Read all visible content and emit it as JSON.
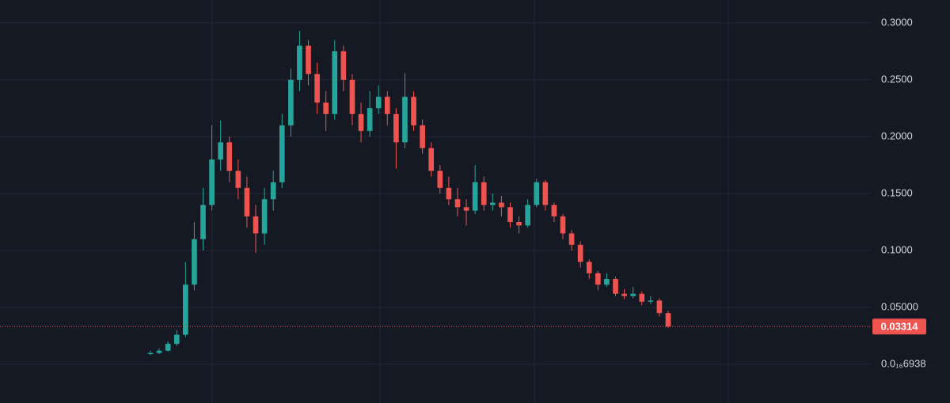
{
  "chart_data": {
    "type": "candlestick",
    "up_color": "#26a69a",
    "down_color": "#ef5350",
    "ylim": [
      -0.034,
      0.3201
    ],
    "yticks": [
      {
        "value": 0.3,
        "label": "0.3000"
      },
      {
        "value": 0.25,
        "label": "0.2500"
      },
      {
        "value": 0.2,
        "label": "0.2000"
      },
      {
        "value": 0.15,
        "label": "0.1500"
      },
      {
        "value": 0.1,
        "label": "0.1000"
      },
      {
        "value": 0.05,
        "label": "0.05000"
      },
      {
        "value": 6.938e-17,
        "label": "0.0₁₆6938"
      }
    ],
    "grid": true,
    "last_price": 0.03314,
    "open": [
      0.009,
      0.01,
      0.012,
      0.018,
      0.026,
      0.07,
      0.11,
      0.14,
      0.18,
      0.195,
      0.17,
      0.155,
      0.13,
      0.115,
      0.145,
      0.16,
      0.21,
      0.25,
      0.28,
      0.255,
      0.23,
      0.22,
      0.275,
      0.25,
      0.22,
      0.205,
      0.225,
      0.235,
      0.22,
      0.195,
      0.235,
      0.21,
      0.19,
      0.17,
      0.155,
      0.145,
      0.138,
      0.135,
      0.16,
      0.14,
      0.142,
      0.138,
      0.125,
      0.122,
      0.14,
      0.16,
      0.14,
      0.13,
      0.115,
      0.105,
      0.09,
      0.08,
      0.07,
      0.075,
      0.062,
      0.06,
      0.062,
      0.055,
      0.056,
      0.045
    ],
    "high": [
      0.012,
      0.014,
      0.02,
      0.03,
      0.09,
      0.125,
      0.155,
      0.21,
      0.214,
      0.2,
      0.18,
      0.165,
      0.14,
      0.155,
      0.17,
      0.22,
      0.26,
      0.293,
      0.285,
      0.265,
      0.24,
      0.285,
      0.28,
      0.255,
      0.23,
      0.24,
      0.245,
      0.24,
      0.225,
      0.256,
      0.24,
      0.215,
      0.195,
      0.175,
      0.165,
      0.155,
      0.145,
      0.175,
      0.165,
      0.15,
      0.148,
      0.142,
      0.13,
      0.145,
      0.163,
      0.162,
      0.142,
      0.132,
      0.118,
      0.108,
      0.092,
      0.082,
      0.08,
      0.077,
      0.066,
      0.068,
      0.064,
      0.06,
      0.058,
      0.047
    ],
    "low": [
      0.008,
      0.009,
      0.011,
      0.016,
      0.024,
      0.065,
      0.1,
      0.135,
      0.17,
      0.16,
      0.145,
      0.12,
      0.098,
      0.105,
      0.135,
      0.155,
      0.2,
      0.24,
      0.245,
      0.22,
      0.205,
      0.215,
      0.24,
      0.21,
      0.195,
      0.2,
      0.22,
      0.21,
      0.172,
      0.19,
      0.205,
      0.185,
      0.165,
      0.15,
      0.14,
      0.13,
      0.122,
      0.132,
      0.135,
      0.135,
      0.13,
      0.12,
      0.115,
      0.12,
      0.138,
      0.135,
      0.125,
      0.11,
      0.1,
      0.085,
      0.075,
      0.065,
      0.068,
      0.06,
      0.057,
      0.058,
      0.052,
      0.053,
      0.042,
      0.032
    ],
    "close": [
      0.01,
      0.012,
      0.018,
      0.026,
      0.07,
      0.11,
      0.14,
      0.18,
      0.195,
      0.17,
      0.155,
      0.13,
      0.115,
      0.145,
      0.16,
      0.21,
      0.25,
      0.28,
      0.255,
      0.23,
      0.22,
      0.275,
      0.25,
      0.22,
      0.205,
      0.225,
      0.235,
      0.22,
      0.195,
      0.235,
      0.21,
      0.19,
      0.17,
      0.155,
      0.145,
      0.138,
      0.135,
      0.16,
      0.14,
      0.142,
      0.138,
      0.125,
      0.122,
      0.14,
      0.16,
      0.14,
      0.13,
      0.115,
      0.105,
      0.09,
      0.08,
      0.07,
      0.075,
      0.062,
      0.06,
      0.062,
      0.055,
      0.056,
      0.045,
      0.03314
    ]
  }
}
